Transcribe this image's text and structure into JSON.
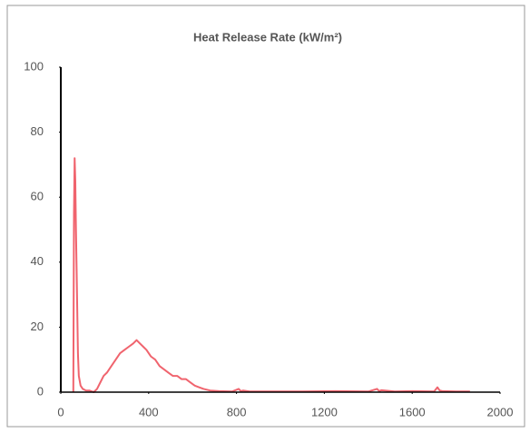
{
  "chart_data": {
    "type": "line",
    "title": "Heat Release Rate (kW/m²)",
    "x": [
      57,
      60,
      63,
      66,
      69,
      72,
      75,
      78,
      82,
      90,
      100,
      115,
      130,
      150,
      165,
      180,
      195,
      210,
      230,
      250,
      270,
      290,
      310,
      330,
      345,
      360,
      375,
      390,
      410,
      430,
      450,
      470,
      490,
      510,
      530,
      550,
      570,
      590,
      610,
      630,
      650,
      680,
      720,
      780,
      810,
      820,
      830,
      860,
      950,
      1100,
      1250,
      1400,
      1440,
      1450,
      1460,
      1520,
      1600,
      1700,
      1715,
      1725,
      1740,
      1800,
      1863
    ],
    "series": [
      {
        "color": "#f0646e",
        "values": [
          0,
          55,
          72,
          65,
          50,
          38,
          25,
          12,
          5,
          2,
          1,
          0.5,
          0.5,
          0,
          1,
          3,
          5,
          6,
          8,
          10,
          12,
          13,
          14,
          15,
          16,
          15,
          14,
          13,
          11,
          10,
          8,
          7,
          6,
          5,
          5,
          4,
          4,
          3,
          2,
          1.5,
          1,
          0.5,
          0.3,
          0.2,
          1,
          0.3,
          0.5,
          0.2,
          0.2,
          0.2,
          0.3,
          0.2,
          1,
          0.3,
          0.6,
          0.2,
          0.3,
          0.2,
          1.5,
          0.5,
          0.3,
          0.2,
          0.2
        ]
      }
    ],
    "xlim": [
      0,
      2000
    ],
    "xticks": [
      0,
      400,
      800,
      1200,
      1600,
      2000
    ],
    "ylim": [
      0,
      100
    ],
    "yticks": [
      0,
      20,
      40,
      60,
      80,
      100
    ]
  }
}
